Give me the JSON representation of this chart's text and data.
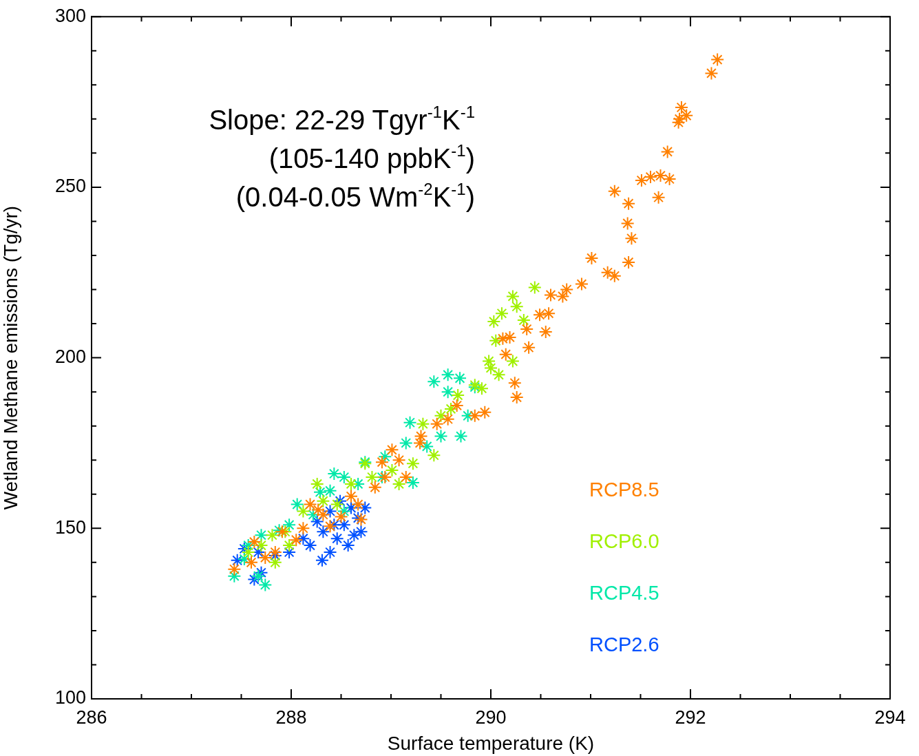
{
  "chart_data": {
    "type": "scatter",
    "xlabel": "Surface temperature (K)",
    "ylabel": "Wetland Methane emissions (Tg/yr)",
    "annotations": [
      "Slope: 22-29 Tgyr$^{-1}$K$^{-1}$",
      "(105-140 ppbK$^{-1}$)",
      "(0.04-0.05 Wm$^{-2}$K$^{-1}$)"
    ],
    "xlim": [
      286,
      294
    ],
    "ylim": [
      100,
      300
    ],
    "xticks": [
      286,
      {
        "value": 286.5,
        "label": null
      },
      {
        "value": 287,
        "label": null
      },
      {
        "value": 287.5,
        "label": null
      },
      288,
      {
        "value": 288.5,
        "label": null
      },
      {
        "value": 289,
        "label": null
      },
      {
        "value": 289.5,
        "label": null
      },
      290,
      {
        "value": 290.5,
        "label": null
      },
      {
        "value": 291,
        "label": null
      },
      {
        "value": 291.5,
        "label": null
      },
      292,
      {
        "value": 292.5,
        "label": null
      },
      {
        "value": 293,
        "label": null
      },
      {
        "value": 293.5,
        "label": null
      },
      294
    ],
    "yticks": [
      100,
      {
        "value": 110,
        "label": null
      },
      {
        "value": 120,
        "label": null
      },
      {
        "value": 130,
        "label": null
      },
      {
        "value": 140,
        "label": null
      },
      150,
      {
        "value": 160,
        "label": null
      },
      {
        "value": 170,
        "label": null
      },
      {
        "value": 180,
        "label": null
      },
      {
        "value": 190,
        "label": null
      },
      200,
      {
        "value": 210,
        "label": null
      },
      {
        "value": 220,
        "label": null
      },
      {
        "value": 230,
        "label": null
      },
      {
        "value": 240,
        "label": null
      },
      250,
      {
        "value": 260,
        "label": null
      },
      {
        "value": 270,
        "label": null
      },
      {
        "value": 280,
        "label": null
      },
      {
        "value": 290,
        "label": null
      },
      300
    ],
    "grid": false,
    "legend": "bottom right",
    "marker": "cross",
    "series": [
      {
        "name": "RCP8.5",
        "color": "#ff8000",
        "x": [
          292.27,
          292.21,
          291.89,
          291.96,
          291.88,
          291.91,
          291.77,
          291.51,
          291.6,
          291.7,
          291.79,
          291.68,
          291.24,
          291.38,
          291.37,
          291.41,
          291.38,
          291.01,
          291.17,
          291.24,
          290.91,
          290.76,
          290.72,
          290.6,
          290.58,
          290.49,
          290.55,
          290.38,
          290.36,
          290.19,
          290.12,
          290.15,
          290.24,
          290.26,
          289.94,
          289.84,
          289.66,
          289.57,
          289.46,
          289.3,
          289.08,
          289.01,
          288.94,
          288.84,
          288.67,
          288.6,
          288.5,
          288.39,
          288.27,
          288.19,
          288.05,
          287.84,
          287.74,
          287.6,
          287.43,
          287.63,
          287.91,
          288.12,
          288.32,
          288.7,
          288.91,
          289.15,
          289.29
        ],
        "values": [
          287.4,
          283.4,
          270,
          271,
          269,
          273.4,
          260.4,
          252,
          253,
          253.4,
          252.4,
          247,
          248.8,
          245.2,
          239.4,
          235,
          228,
          229.2,
          225,
          224,
          221.6,
          220,
          218,
          218.4,
          213,
          212.6,
          207.6,
          203,
          208.4,
          206,
          205.6,
          201,
          192.6,
          188.4,
          184,
          183,
          186,
          182,
          180.6,
          177,
          170,
          173,
          165,
          162,
          157,
          159.4,
          153.4,
          150.6,
          155.4,
          157,
          146.6,
          143,
          141.4,
          140,
          138,
          146,
          149,
          150,
          154,
          152.6,
          169.4,
          165,
          175
        ]
      },
      {
        "name": "RCP6.0",
        "color": "#a0f000",
        "x": [
          290.44,
          290.22,
          290.26,
          290.33,
          290.03,
          290.11,
          290.05,
          289.98,
          290.0,
          290.08,
          290.22,
          289.91,
          289.84,
          289.67,
          289.6,
          289.5,
          289.43,
          289.32,
          289.01,
          288.81,
          288.74,
          288.6,
          288.46,
          288.32,
          288.12,
          287.94,
          287.81,
          287.7,
          287.84,
          287.98,
          287.57,
          288.26,
          289.08,
          289.22
        ],
        "values": [
          220.6,
          218,
          215,
          211,
          210.6,
          213,
          205,
          199,
          197,
          195,
          199,
          191,
          192,
          189,
          185,
          183,
          171.4,
          180.6,
          167,
          165,
          169,
          163,
          157,
          158,
          155,
          149,
          148,
          145,
          140,
          145,
          143,
          163,
          163,
          169
        ]
      },
      {
        "name": "RCP4.5",
        "color": "#00e8a8",
        "x": [
          289.57,
          289.69,
          289.43,
          289.84,
          289.57,
          289.77,
          289.7,
          289.5,
          289.36,
          289.19,
          289.15,
          288.94,
          288.91,
          288.74,
          288.67,
          288.53,
          288.39,
          288.43,
          288.29,
          288.06,
          287.98,
          287.88,
          287.7,
          287.57,
          287.53,
          287.43,
          287.74,
          287.67,
          289.22,
          288.53,
          288.22
        ],
        "values": [
          195,
          194,
          193,
          191.4,
          190,
          183,
          177,
          177,
          174,
          181,
          175,
          171,
          165,
          169.4,
          163,
          165,
          161,
          166,
          160.6,
          157,
          151,
          149.4,
          148,
          145,
          141,
          136,
          133.4,
          136,
          163.4,
          155,
          154
        ]
      },
      {
        "name": "RCP2.6",
        "color": "#0050ff",
        "x": [
          288.6,
          288.67,
          288.7,
          288.53,
          288.46,
          288.57,
          288.39,
          288.32,
          288.26,
          288.39,
          288.49,
          288.19,
          288.31,
          288.12,
          287.98,
          287.84,
          287.67,
          287.7,
          287.63,
          287.46,
          287.53,
          288.74,
          288.63,
          288.43
        ],
        "values": [
          156,
          153,
          149,
          151,
          147,
          145,
          143,
          149,
          152,
          155,
          158,
          145,
          140.6,
          147,
          143,
          142,
          143,
          137,
          135,
          140.6,
          144,
          156,
          148,
          151
        ]
      }
    ]
  }
}
